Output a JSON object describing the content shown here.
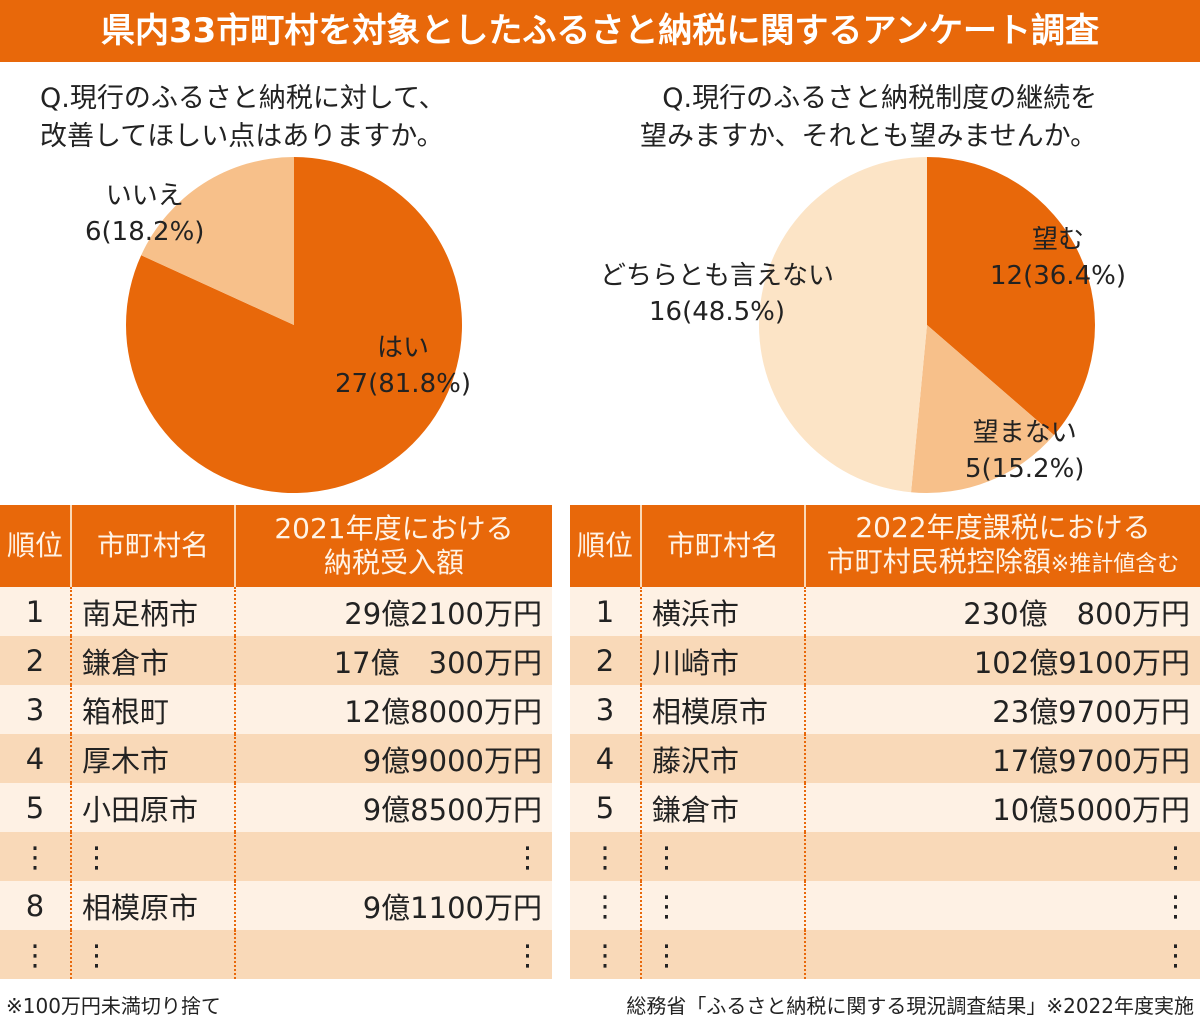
{
  "title": "県内33市町村を対象としたふるさと納税に関するアンケート調査",
  "chart_data": [
    {
      "type": "pie",
      "title": "Q.現行のふるさと納税に対して、\n改善してほしい点はありますか。",
      "slices": [
        {
          "label": "はい",
          "value": 27,
          "percent_label": "27(81.8%)",
          "color": "#E8680A"
        },
        {
          "label": "いいえ",
          "value": 6,
          "percent_label": "6(18.2%)",
          "color": "#F7C08A"
        }
      ]
    },
    {
      "type": "pie",
      "title": "Q.現行のふるさと納税制度の継続を\n望みますか、それとも望みませんか。",
      "slices": [
        {
          "label": "望む",
          "value": 12,
          "percent_label": "12(36.4%)",
          "color": "#E8680A"
        },
        {
          "label": "望まない",
          "value": 5,
          "percent_label": "5(15.2%)",
          "color": "#F7C08A"
        },
        {
          "label": "どちらとも言えない",
          "value": 16,
          "percent_label": "16(48.5%)",
          "color": "#FCE4C6"
        }
      ]
    }
  ],
  "table_left": {
    "headers": [
      "順位",
      "市町村名",
      "2021年度における\n納税受入額"
    ],
    "rows": [
      [
        "1",
        "南足柄市",
        "29億2100万円"
      ],
      [
        "2",
        "鎌倉市",
        "17億　300万円"
      ],
      [
        "3",
        "箱根町",
        "12億8000万円"
      ],
      [
        "4",
        "厚木市",
        "9億9000万円"
      ],
      [
        "5",
        "小田原市",
        "9億8500万円"
      ],
      [
        "⋮",
        "⋮",
        "⋮"
      ],
      [
        "8",
        "相模原市",
        "9億1100万円"
      ],
      [
        "⋮",
        "⋮",
        "⋮"
      ]
    ]
  },
  "table_right": {
    "headers": [
      "順位",
      "市町村名",
      "2022年度課税における",
      "市町村民税控除額",
      "※推計値含む"
    ],
    "rows": [
      [
        "1",
        "横浜市",
        "230億　800万円"
      ],
      [
        "2",
        "川崎市",
        "102億9100万円"
      ],
      [
        "3",
        "相模原市",
        "23億9700万円"
      ],
      [
        "4",
        "藤沢市",
        "17億9700万円"
      ],
      [
        "5",
        "鎌倉市",
        "10億5000万円"
      ],
      [
        "⋮",
        "⋮",
        "⋮"
      ],
      [
        "⋮",
        "⋮",
        "⋮"
      ],
      [
        "⋮",
        "⋮",
        "⋮"
      ]
    ]
  },
  "footer": {
    "note": "※100万円未満切り捨て",
    "source": "総務省「ふるさと納税に関する現況調査結果」※2022年度実施"
  }
}
